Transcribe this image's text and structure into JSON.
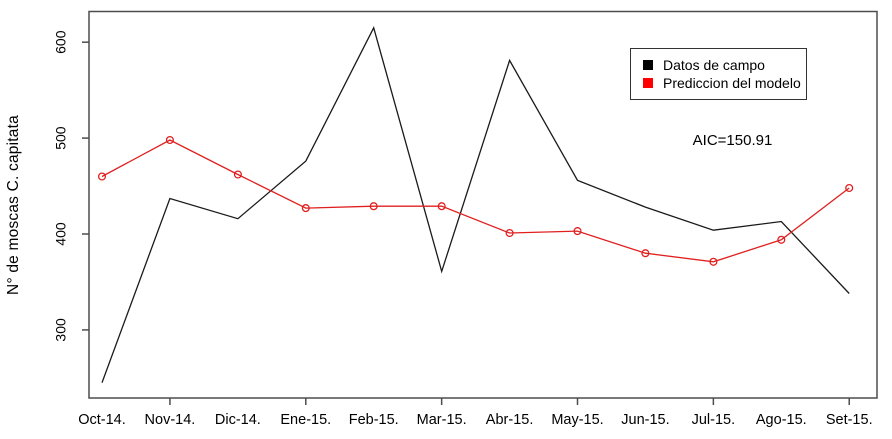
{
  "chart_data": {
    "type": "line",
    "title": "",
    "xlabel": "",
    "ylabel": "N° de moscas C. capitata",
    "categories": [
      "Oct-14.",
      "Nov-14.",
      "Dic-14.",
      "Ene-15.",
      "Feb-15.",
      "Mar-15.",
      "Abr-15.",
      "May-15.",
      "Jun-15.",
      "Jul-15.",
      "Ago-15.",
      "Set-15."
    ],
    "series": [
      {
        "name": "Datos de campo",
        "color": "#1a1a1a",
        "legend_color": "#000000",
        "marker": "none",
        "values": [
          245,
          437,
          416,
          476,
          615,
          361,
          581,
          456,
          428,
          404,
          413,
          338
        ]
      },
      {
        "name": "Prediccion del modelo",
        "color": "#e02020",
        "legend_color": "#ff0000",
        "marker": "open-circle",
        "values": [
          460,
          498,
          462,
          427,
          429,
          429,
          401,
          403,
          380,
          371,
          394,
          448
        ]
      }
    ],
    "yticks": [
      300,
      400,
      500,
      600
    ],
    "ylim": [
      229,
      632
    ],
    "xtick_marks_at": [
      "Nov-14.",
      "Ene-15.",
      "Mar-15.",
      "May-15.",
      "Jul-15.",
      "Set-15."
    ],
    "annotation": "AIC=150.91",
    "legend_position": "top-right",
    "grid": false
  }
}
